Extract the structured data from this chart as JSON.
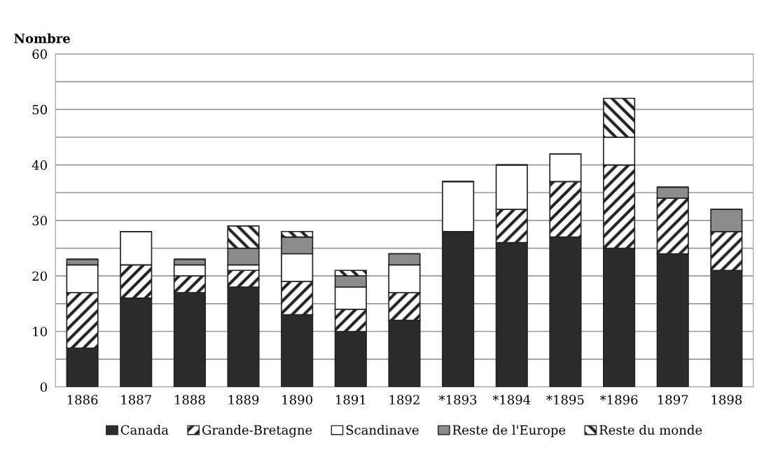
{
  "chart_data": {
    "type": "bar",
    "stacked": true,
    "ylabel": "Nombre",
    "categories": [
      "1886",
      "1887",
      "1888",
      "1889",
      "1890",
      "1891",
      "1892",
      "*1893",
      "*1894",
      "*1895",
      "*1896",
      "1897",
      "1898"
    ],
    "series": [
      {
        "name": "Canada",
        "color": "#2b2b2b",
        "values": [
          7,
          16,
          17,
          18,
          13,
          10,
          12,
          28,
          26,
          27,
          25,
          24,
          21
        ]
      },
      {
        "name": "Grande-Bretagne",
        "color": "#222222",
        "values": [
          10,
          6,
          3,
          3,
          6,
          4,
          5,
          0,
          6,
          10,
          15,
          10,
          7
        ]
      },
      {
        "name": "Scandinave",
        "color": "#ffffff",
        "values": [
          5,
          6,
          2,
          1,
          5,
          4,
          5,
          9,
          8,
          5,
          5,
          0,
          0
        ]
      },
      {
        "name": "Reste de l'Europe",
        "color": "#8c8c8c",
        "values": [
          1,
          0,
          1,
          3,
          3,
          2,
          2,
          0,
          0,
          0,
          0,
          2,
          4
        ]
      },
      {
        "name": "Reste du monde",
        "color": "#222222",
        "values": [
          0,
          0,
          0,
          4,
          1,
          1,
          0,
          0,
          0,
          0,
          7,
          0,
          0
        ]
      }
    ],
    "ylim": [
      0,
      60
    ],
    "yticks": [
      0,
      {
        "value": 5,
        "label": null
      },
      10,
      {
        "value": 15,
        "label": null
      },
      20,
      {
        "value": 25,
        "label": null
      },
      30,
      {
        "value": 35,
        "label": null
      },
      40,
      {
        "value": 45,
        "label": null
      },
      50,
      {
        "value": 55,
        "label": null
      },
      60
    ],
    "grid": "y",
    "legend": "bottom"
  }
}
